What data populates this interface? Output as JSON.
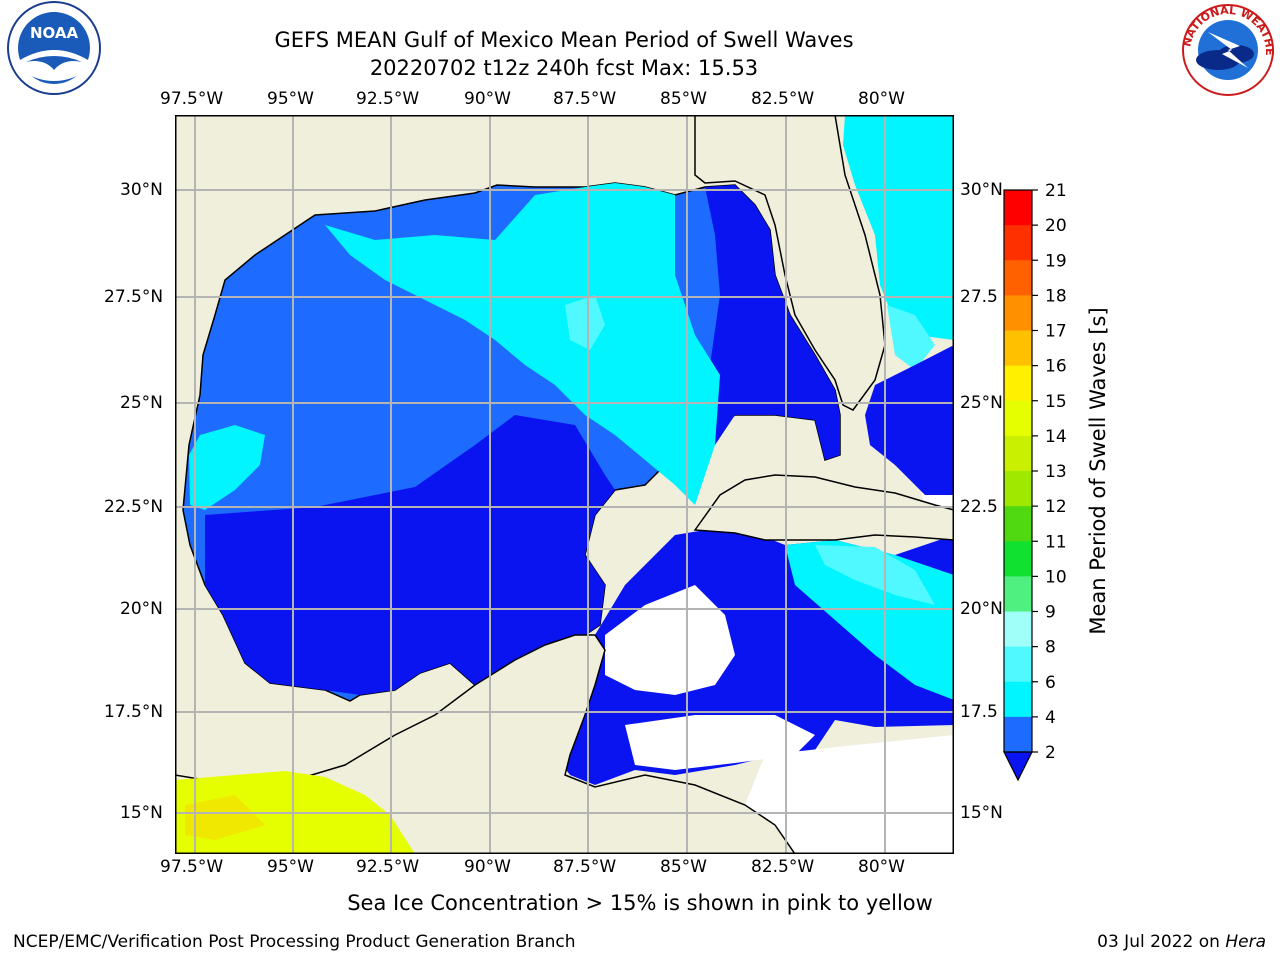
{
  "header": {
    "title_line1": "GEFS MEAN Gulf of Mexico Mean Period of Swell Waves",
    "title_line2": "20220702 t12z 240h fcst   Max: 15.53"
  },
  "logos": {
    "left": {
      "text": "NOAA",
      "icon": "noaa-logo-icon"
    },
    "right": {
      "text": "NATIONAL WEATHER SERVICE",
      "icon": "nws-logo-icon"
    }
  },
  "map": {
    "lon_labels": [
      "97.5°W",
      "95°W",
      "92.5°W",
      "90°W",
      "87.5°W",
      "85°W",
      "82.5°W",
      "80°W"
    ],
    "lat_labels_left": [
      "30°N",
      "27.5°N",
      "25°N",
      "22.5°N",
      "20°N",
      "17.5°N",
      "15°N"
    ],
    "lat_labels_right": [
      "30°N",
      "27.5",
      "25°N",
      "22.5",
      "20°N",
      "17.5",
      "15°N"
    ],
    "colors": {
      "land": "#efefdc",
      "ocean_blue": "#1e6bff",
      "deep_blue": "#0a14f0",
      "cyan": "#00f5ff",
      "light_cyan": "#50f8ff",
      "yellow": "#e6ff00"
    }
  },
  "colorbar": {
    "label": "Mean Period of Swell Waves [s]",
    "ticks": [
      "2",
      "4",
      "6",
      "8",
      "9",
      "10",
      "11",
      "12",
      "13",
      "14",
      "15",
      "16",
      "17",
      "18",
      "19",
      "20",
      "21"
    ],
    "colors": [
      "#0a14f0",
      "#1e6bff",
      "#00f5ff",
      "#50f8ff",
      "#a0fff8",
      "#50f080",
      "#10e030",
      "#50d810",
      "#a0e800",
      "#c8f000",
      "#e6ff00",
      "#fff000",
      "#ffc000",
      "#ff9000",
      "#ff6000",
      "#ff3000",
      "#ff0000"
    ]
  },
  "notes": {
    "sea_ice": "Sea Ice Concentration > 15% is shown in pink to yellow"
  },
  "footer": {
    "left": "NCEP/EMC/Verification Post Processing Product Generation Branch",
    "right_date": "03 Jul 2022 on ",
    "right_host": "Hera"
  }
}
